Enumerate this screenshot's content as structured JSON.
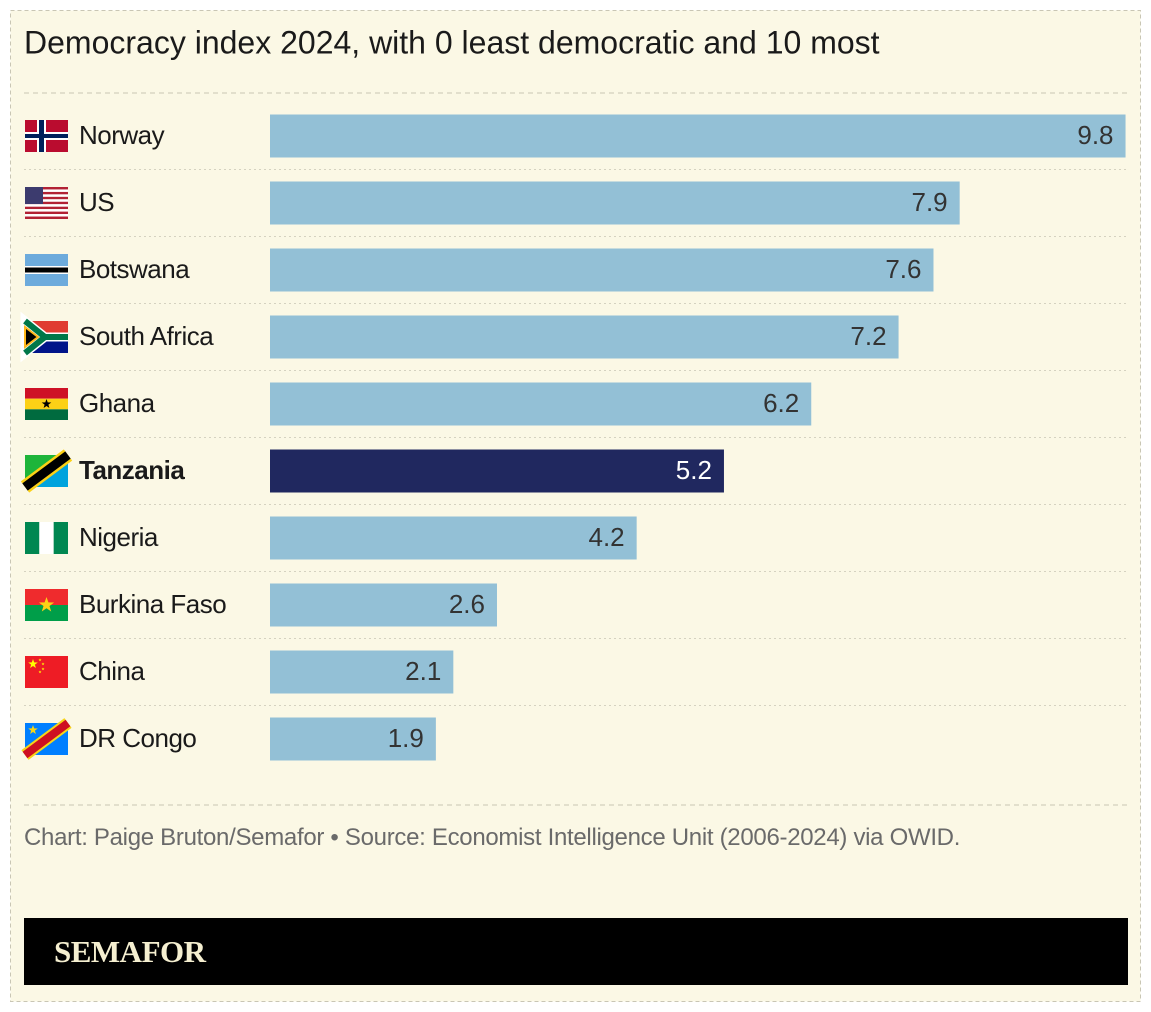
{
  "chart_data": {
    "type": "bar",
    "orientation": "horizontal",
    "title": "Democracy index 2024, with 0 least democratic and 10 most",
    "categories": [
      "Norway",
      "US",
      "Botswana",
      "South Africa",
      "Ghana",
      "Tanzania",
      "Nigeria",
      "Burkina Faso",
      "China",
      "DR Congo"
    ],
    "values": [
      9.8,
      7.9,
      7.6,
      7.2,
      6.2,
      5.2,
      4.2,
      2.6,
      2.1,
      1.9
    ],
    "colors": [
      "#93c0d6",
      "#93c0d6",
      "#93c0d6",
      "#93c0d6",
      "#93c0d6",
      "#20285f",
      "#93c0d6",
      "#93c0d6",
      "#93c0d6",
      "#93c0d6"
    ],
    "xlim": [
      0,
      10
    ],
    "source": "Chart: Paige Bruton/Semafor • Source: Economist Intelligence Unit (2006-2024) via OWID.",
    "logo": "SEMAFOR"
  }
}
